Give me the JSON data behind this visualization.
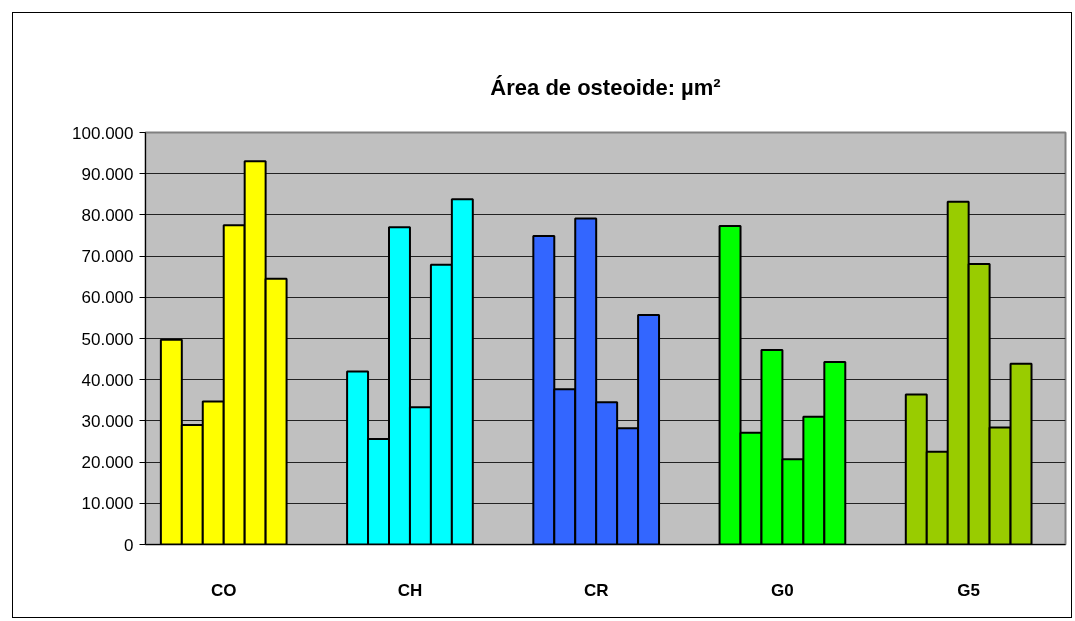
{
  "chart_data": {
    "type": "bar",
    "title": "Área de osteoide: µm²",
    "categories": [
      "CO",
      "CH",
      "CR",
      "G0",
      "G5"
    ],
    "series": [
      {
        "colors": [
          "#ffff00",
          "#00ffff",
          "#3366ff",
          "#00ff00",
          "#99cc00"
        ],
        "values": [
          49700,
          42000,
          74900,
          77300,
          36400
        ]
      },
      {
        "colors": [
          "#ffff00",
          "#00ffff",
          "#3366ff",
          "#00ff00",
          "#99cc00"
        ],
        "values": [
          29000,
          25600,
          37700,
          27100,
          22500
        ]
      },
      {
        "colors": [
          "#ffff00",
          "#00ffff",
          "#3366ff",
          "#00ff00",
          "#99cc00"
        ],
        "values": [
          34700,
          77000,
          79100,
          47200,
          83200
        ]
      },
      {
        "colors": [
          "#ffff00",
          "#00ffff",
          "#3366ff",
          "#00ff00",
          "#99cc00"
        ],
        "values": [
          77500,
          33300,
          34500,
          20700,
          68100
        ]
      },
      {
        "colors": [
          "#ffff00",
          "#00ffff",
          "#3366ff",
          "#00ff00",
          "#99cc00"
        ],
        "values": [
          93000,
          67900,
          28200,
          31000,
          28400
        ]
      },
      {
        "colors": [
          "#ffff00",
          "#00ffff",
          "#3366ff",
          "#00ff00",
          "#99cc00"
        ],
        "values": [
          64500,
          83800,
          55700,
          44300,
          43900
        ]
      }
    ],
    "ylim": [
      0,
      100000
    ],
    "yticks": [
      0,
      {
        "value": 10000,
        "label": "10.000"
      },
      {
        "value": 20000,
        "label": "20.000"
      },
      {
        "value": 30000,
        "label": "30.000"
      },
      {
        "value": 40000,
        "label": "40.000"
      },
      {
        "value": 50000,
        "label": "50.000"
      },
      {
        "value": 60000,
        "label": "60.000"
      },
      {
        "value": 70000,
        "label": "70.000"
      },
      {
        "value": 80000,
        "label": "80.000"
      },
      {
        "value": 90000,
        "label": "90.000"
      },
      {
        "value": 100000,
        "label": "100.000"
      }
    ],
    "grid": "y"
  }
}
